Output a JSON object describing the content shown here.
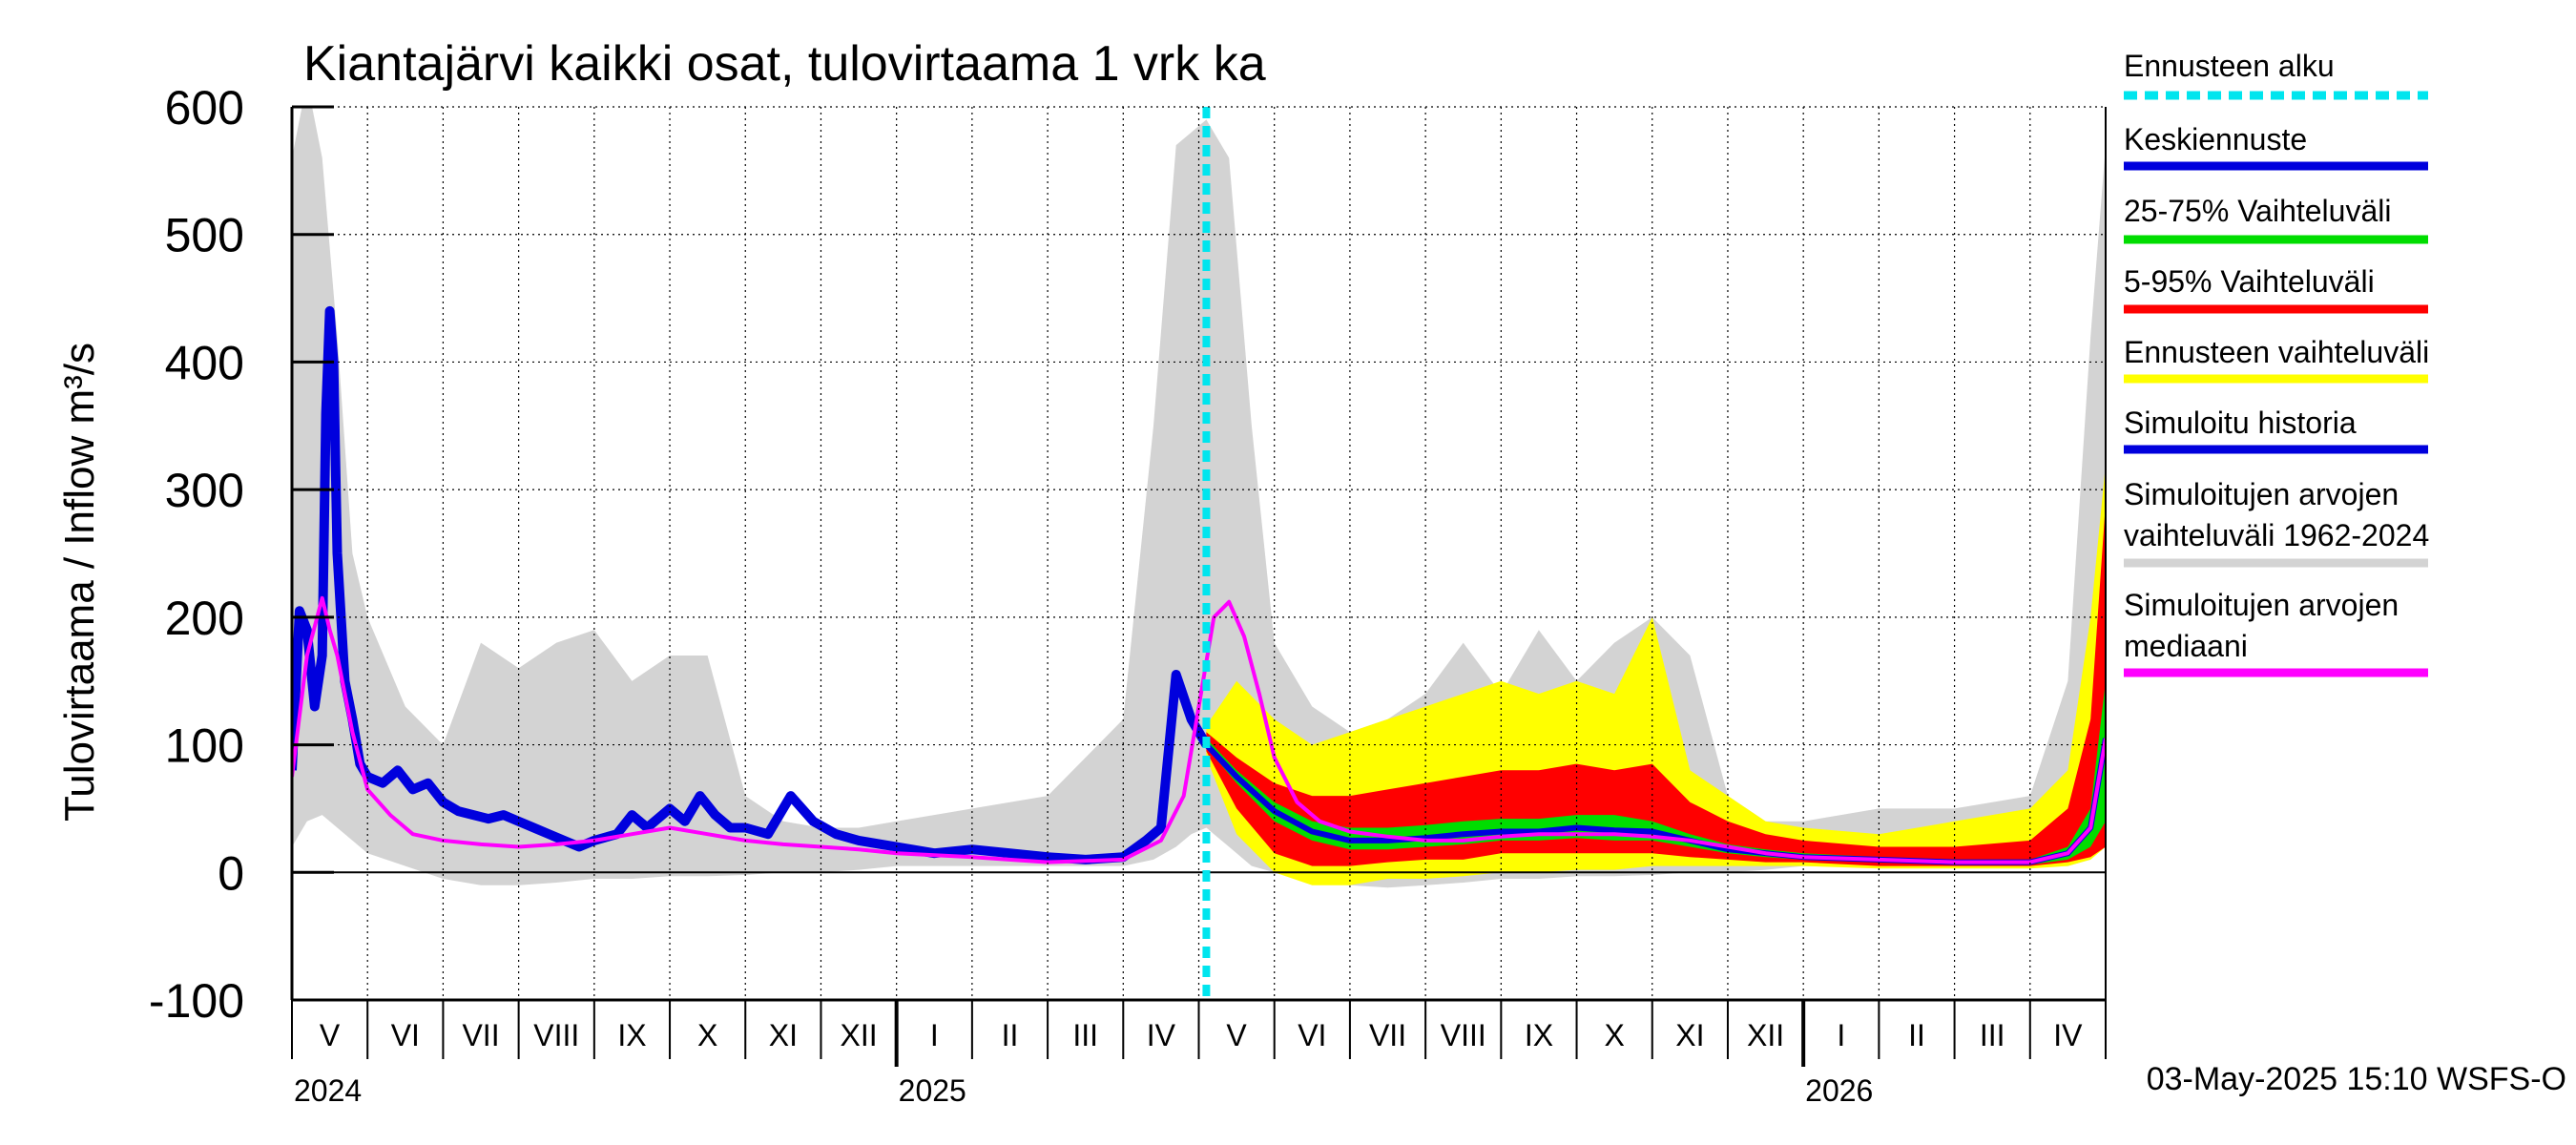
{
  "chart_data": {
    "type": "area",
    "title": "Kiantajärvi kaikki osat, tulovirtaama 1 vrk ka",
    "ylabel": "Tulovirtaama / Inflow   m³/s",
    "ylim": [
      -100,
      600
    ],
    "yticks": [
      -100,
      0,
      100,
      200,
      300,
      400,
      500,
      600
    ],
    "grid": true,
    "x_range_months": [
      0,
      24
    ],
    "month_labels": [
      "V",
      "VI",
      "VII",
      "VIII",
      "IX",
      "X",
      "XI",
      "XII",
      "I",
      "II",
      "III",
      "IV",
      "V",
      "VI",
      "VII",
      "VIII",
      "IX",
      "X",
      "XI",
      "XII",
      "I",
      "II",
      "III",
      "IV"
    ],
    "year_labels": [
      {
        "label": "2024",
        "month": 0
      },
      {
        "label": "2025",
        "month": 8
      },
      {
        "label": "2026",
        "month": 20
      }
    ],
    "forecast_start_month": 12.1,
    "footer": "03-May-2025 15:10 WSFS-O",
    "colors": {
      "forecast_start": "#00e5ee",
      "mean_forecast": "#0000dd",
      "range_25_75": "#00dd00",
      "range_5_95": "#ff0000",
      "forecast_range": "#ffff00",
      "sim_history": "#0000dd",
      "hist_range": "#d3d3d3",
      "median": "#ff00ff"
    },
    "legend": [
      {
        "label": "Ennusteen alku",
        "key": "forecast_start",
        "style": "dashed"
      },
      {
        "label": "Keskiennuste",
        "key": "mean_forecast",
        "style": "line"
      },
      {
        "label": "25-75% Vaihteluväli",
        "key": "range_25_75",
        "style": "line"
      },
      {
        "label": "5-95% Vaihteluväli",
        "key": "range_5_95",
        "style": "line"
      },
      {
        "label": "Ennusteen vaihteluväli",
        "key": "forecast_range",
        "style": "line"
      },
      {
        "label": "Simuloitu historia",
        "key": "sim_history",
        "style": "line"
      },
      {
        "label": "Simuloitujen arvojen",
        "label2": "vaihteluväli 1962-2024",
        "key": "hist_range",
        "style": "line"
      },
      {
        "label": "Simuloitujen arvojen",
        "label2": "mediaani",
        "key": "median",
        "style": "line"
      }
    ],
    "series": {
      "hist_range": {
        "name": "Simuloitujen arvojen vaihteluväli 1962-2024",
        "x": [
          0,
          0.2,
          0.4,
          0.6,
          0.8,
          1,
          1.5,
          2,
          2.5,
          3,
          3.5,
          4,
          4.5,
          5,
          5.5,
          6,
          6.5,
          7,
          7.5,
          8,
          9,
          10,
          11,
          11.4,
          11.7,
          11.9,
          12.1,
          12.4,
          12.7,
          13,
          13.5,
          14,
          14.5,
          15,
          15.5,
          16,
          16.5,
          17,
          17.5,
          18,
          18.5,
          19,
          19.5,
          20,
          21,
          22,
          23,
          23.5,
          23.8,
          24
        ],
        "low": [
          20,
          40,
          45,
          35,
          25,
          15,
          5,
          -5,
          -10,
          -10,
          -8,
          -5,
          -5,
          -3,
          -3,
          -2,
          0,
          0,
          2,
          5,
          5,
          5,
          5,
          10,
          20,
          30,
          35,
          20,
          5,
          0,
          -5,
          -10,
          -12,
          -10,
          -8,
          -5,
          -5,
          -3,
          -3,
          -2,
          0,
          0,
          2,
          5,
          5,
          5,
          5,
          5,
          10,
          20
        ],
        "high": [
          560,
          620,
          560,
          420,
          250,
          200,
          130,
          100,
          180,
          160,
          180,
          190,
          150,
          170,
          170,
          60,
          40,
          35,
          35,
          40,
          50,
          60,
          120,
          350,
          570,
          580,
          590,
          560,
          350,
          180,
          130,
          110,
          120,
          140,
          180,
          140,
          190,
          150,
          180,
          200,
          170,
          60,
          40,
          40,
          50,
          50,
          60,
          150,
          420,
          570
        ]
      },
      "forecast_range": {
        "name": "Ennusteen vaihteluväli",
        "x": [
          12.1,
          12.5,
          13,
          13.5,
          14,
          14.5,
          15,
          15.5,
          16,
          16.5,
          17,
          17.5,
          18,
          18.5,
          19,
          19.5,
          20,
          21,
          22,
          23,
          23.5,
          23.8,
          24
        ],
        "low": [
          90,
          30,
          0,
          -10,
          -10,
          -5,
          -5,
          -3,
          0,
          0,
          2,
          2,
          5,
          5,
          5,
          5,
          5,
          3,
          3,
          3,
          5,
          10,
          20
        ],
        "high": [
          115,
          150,
          120,
          100,
          110,
          120,
          130,
          140,
          150,
          140,
          150,
          140,
          200,
          80,
          60,
          40,
          35,
          30,
          40,
          50,
          80,
          200,
          320
        ]
      },
      "range_5_95": {
        "name": "5-95% Vaihteluväli",
        "x": [
          12.1,
          12.5,
          13,
          13.5,
          14,
          14.5,
          15,
          15.5,
          16,
          16.5,
          17,
          17.5,
          18,
          18.5,
          19,
          19.5,
          20,
          21,
          22,
          23,
          23.5,
          23.8,
          24
        ],
        "low": [
          95,
          50,
          15,
          5,
          5,
          8,
          10,
          10,
          15,
          15,
          15,
          15,
          15,
          12,
          10,
          8,
          8,
          5,
          5,
          5,
          8,
          12,
          20
        ],
        "high": [
          110,
          90,
          70,
          60,
          60,
          65,
          70,
          75,
          80,
          80,
          85,
          80,
          85,
          55,
          40,
          30,
          25,
          20,
          20,
          25,
          50,
          120,
          290
        ]
      },
      "range_25_75": {
        "name": "25-75% Vaihteluväli",
        "x": [
          12.1,
          12.5,
          13,
          13.5,
          14,
          14.5,
          15,
          15.5,
          16,
          16.5,
          17,
          17.5,
          18,
          18.5,
          19,
          19.5,
          20,
          21,
          22,
          23,
          23.5,
          23.8,
          24
        ],
        "low": [
          98,
          70,
          40,
          25,
          18,
          18,
          20,
          22,
          25,
          25,
          27,
          25,
          25,
          20,
          15,
          12,
          10,
          8,
          7,
          6,
          10,
          20,
          40
        ],
        "high": [
          105,
          80,
          55,
          40,
          35,
          35,
          37,
          40,
          42,
          42,
          45,
          45,
          40,
          30,
          22,
          18,
          15,
          12,
          10,
          10,
          20,
          50,
          150
        ]
      },
      "mean_forecast": {
        "name": "Keskiennuste",
        "x": [
          12.1,
          12.5,
          13,
          13.5,
          14,
          14.5,
          15,
          15.5,
          16,
          16.5,
          17,
          17.5,
          18,
          18.5,
          19,
          19.5,
          20,
          21,
          22,
          23,
          23.5,
          23.8,
          24
        ],
        "y": [
          100,
          75,
          48,
          32,
          25,
          25,
          27,
          30,
          32,
          32,
          35,
          33,
          32,
          25,
          18,
          15,
          12,
          10,
          8,
          8,
          15,
          35,
          105
        ]
      },
      "sim_history": {
        "name": "Simuloitu historia",
        "x": [
          0,
          0.1,
          0.2,
          0.3,
          0.4,
          0.45,
          0.5,
          0.55,
          0.6,
          0.7,
          0.8,
          0.9,
          1,
          1.2,
          1.4,
          1.6,
          1.8,
          2,
          2.2,
          2.4,
          2.6,
          2.8,
          3,
          3.2,
          3.4,
          3.6,
          3.8,
          4,
          4.3,
          4.5,
          4.7,
          5,
          5.2,
          5.4,
          5.6,
          5.8,
          6,
          6.3,
          6.6,
          6.9,
          7.2,
          7.5,
          7.8,
          8,
          8.5,
          9,
          9.5,
          10,
          10.5,
          11,
          11.3,
          11.5,
          11.7,
          11.9,
          12.1
        ],
        "y": [
          80,
          205,
          190,
          130,
          170,
          360,
          440,
          400,
          250,
          150,
          120,
          85,
          75,
          70,
          80,
          65,
          70,
          55,
          48,
          45,
          42,
          45,
          40,
          35,
          30,
          25,
          20,
          25,
          30,
          45,
          35,
          50,
          40,
          60,
          45,
          35,
          35,
          30,
          60,
          40,
          30,
          25,
          22,
          20,
          15,
          18,
          15,
          12,
          10,
          12,
          25,
          35,
          155,
          120,
          100
        ]
      },
      "median": {
        "name": "Simuloitujen arvojen mediaani",
        "x": [
          0,
          0.2,
          0.4,
          0.5,
          0.6,
          0.8,
          1,
          1.3,
          1.6,
          2,
          2.5,
          3,
          3.5,
          4,
          4.5,
          5,
          5.5,
          6,
          6.5,
          7,
          7.5,
          8,
          9,
          10,
          11,
          11.5,
          11.8,
          12,
          12.2,
          12.4,
          12.6,
          12.8,
          13,
          13.3,
          13.6,
          14,
          14.5,
          15,
          15.5,
          16,
          16.5,
          17,
          17.5,
          18,
          18.5,
          19,
          19.5,
          20,
          21,
          22,
          23,
          23.5,
          23.8,
          24
        ],
        "y": [
          75,
          170,
          215,
          190,
          170,
          110,
          65,
          45,
          30,
          25,
          22,
          20,
          22,
          25,
          30,
          35,
          30,
          25,
          22,
          20,
          18,
          15,
          12,
          8,
          10,
          25,
          60,
          130,
          200,
          212,
          185,
          140,
          90,
          55,
          40,
          32,
          28,
          25,
          25,
          28,
          30,
          30,
          30,
          28,
          25,
          20,
          15,
          12,
          10,
          8,
          8,
          15,
          35,
          105
        ]
      }
    }
  }
}
